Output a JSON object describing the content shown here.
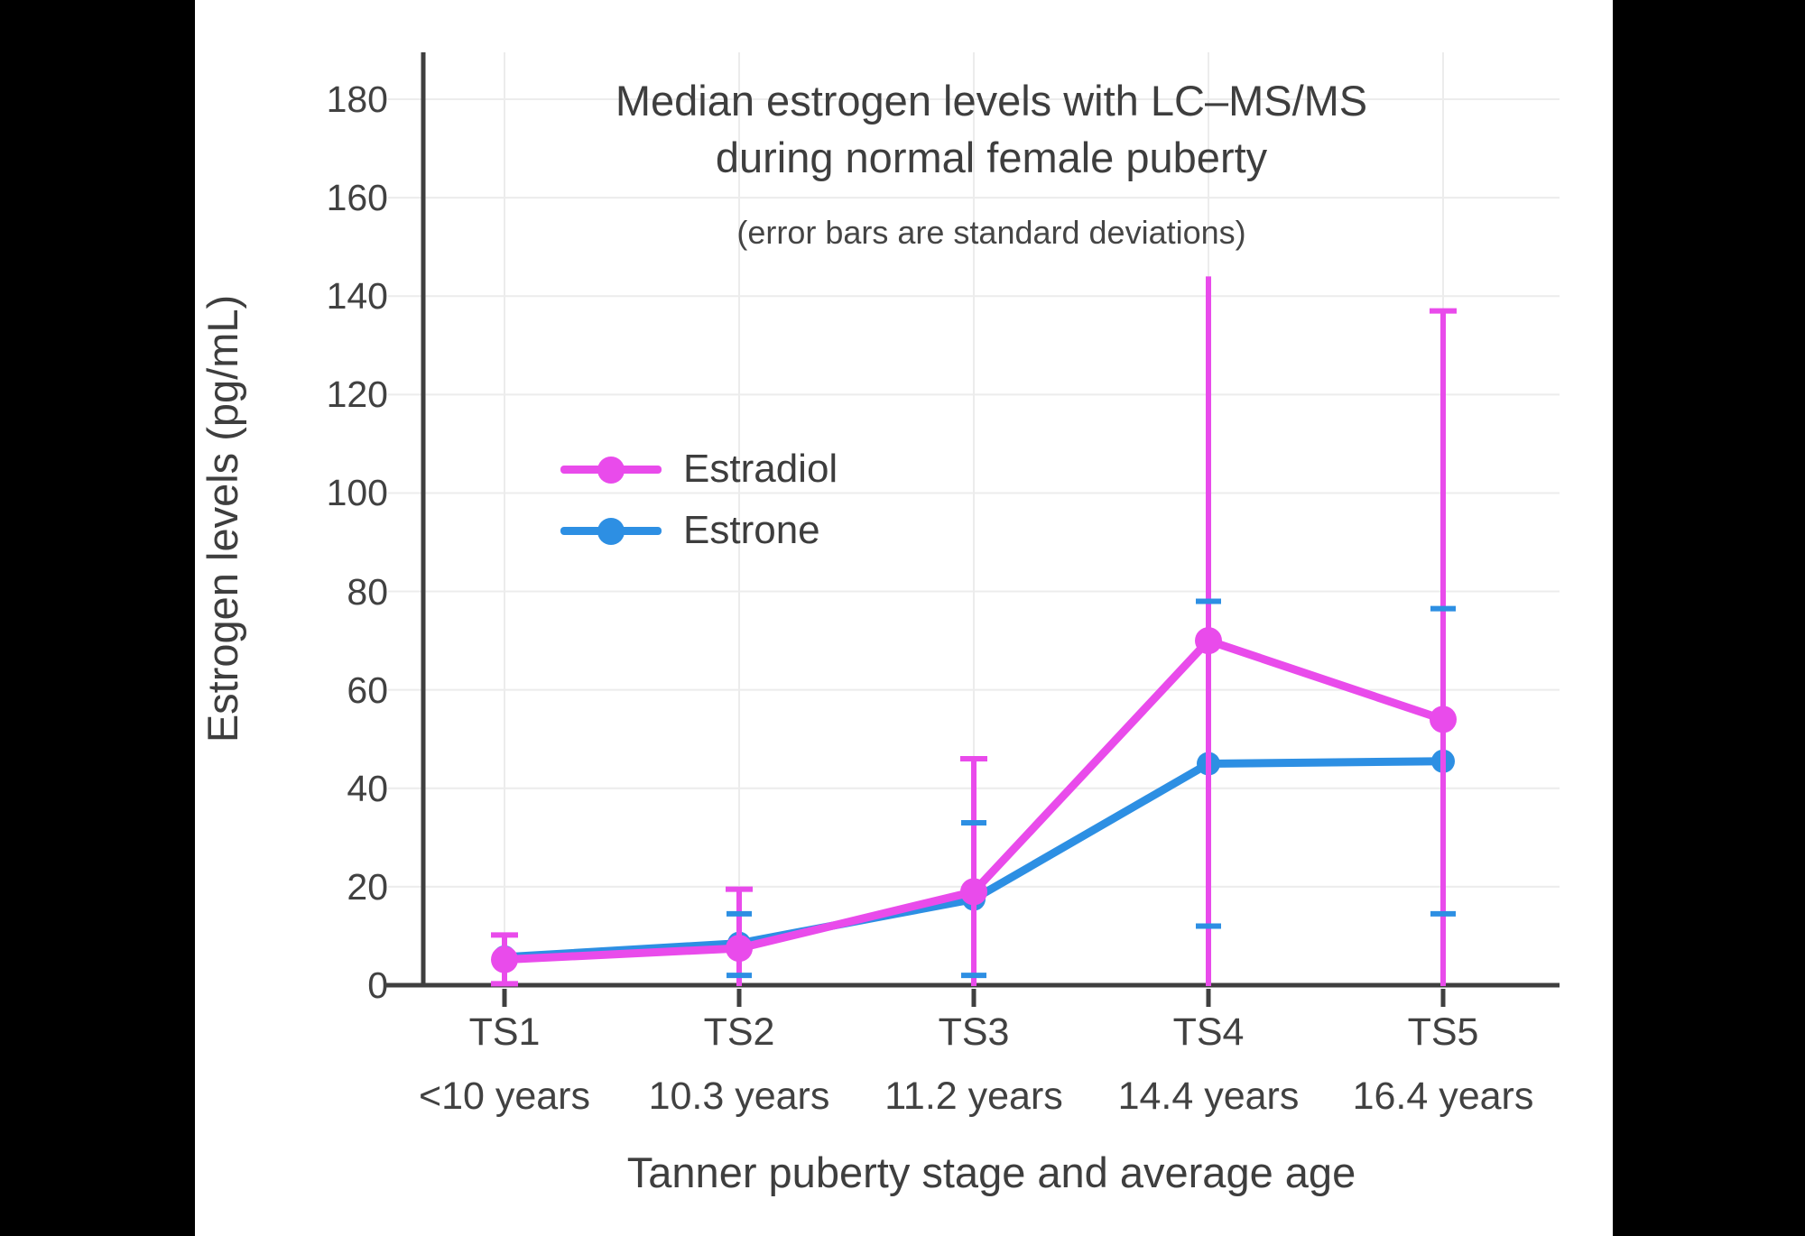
{
  "colors": {
    "background": "#000000",
    "panel": "#FFFFFF",
    "grid": "#ECECEC",
    "axis": "#3F3F3F",
    "text": "#3E3E3E",
    "estradiol": "#E94BEB",
    "estrone": "#2D8FE3"
  },
  "chart_data": {
    "type": "line",
    "title_line1": "Median estrogen levels with LC–MS/MS",
    "title_line2": "during normal female puberty",
    "subtitle": "(error bars are standard deviations)",
    "xlabel": "Tanner puberty stage and average age",
    "ylabel": "Estrogen levels (pg/mL)",
    "x_categories": [
      "TS1",
      "TS2",
      "TS3",
      "TS4",
      "TS5"
    ],
    "x_ages": [
      "<10 years",
      "10.3 years",
      "11.2 years",
      "14.4 years",
      "16.4 years"
    ],
    "yticks": [
      0,
      20,
      40,
      60,
      80,
      100,
      120,
      140,
      160,
      180
    ],
    "ylim": [
      0,
      190
    ],
    "grid": true,
    "legend_position": "inside-upper-left",
    "series": [
      {
        "name": "Estradiol",
        "color": "#E94BEB",
        "values": [
          5.2,
          7.5,
          19,
          70,
          54
        ],
        "err_top": [
          10.2,
          19.5,
          46,
          144,
          137
        ],
        "err_bot": [
          0.3,
          -4.5,
          -8,
          -4.5,
          -29
        ],
        "cap_top": [
          true,
          true,
          true,
          false,
          true
        ],
        "draw_error_vertical": true
      },
      {
        "name": "Estrone",
        "color": "#2D8FE3",
        "values": [
          5.7,
          8.5,
          17.5,
          45,
          45.5
        ],
        "err_top": [
          null,
          14.5,
          33,
          78,
          76.5
        ],
        "err_bot": [
          null,
          2,
          2,
          12,
          14.5
        ],
        "cap_top": [
          false,
          true,
          true,
          true,
          true
        ],
        "draw_error_vertical": false
      }
    ]
  }
}
